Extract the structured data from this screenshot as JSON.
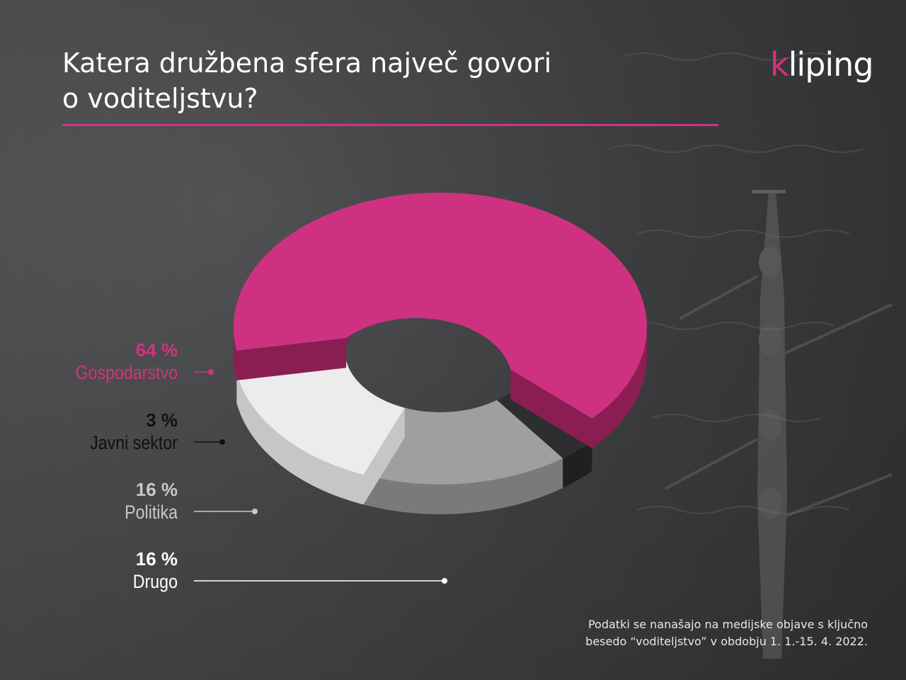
{
  "header": {
    "title_line1": "Katera družbena sfera največ govori",
    "title_line2": "o voditeljstvu?",
    "logo_initial": "k",
    "logo_rest": "liping",
    "accent_color": "#d2337f"
  },
  "chart_data": {
    "type": "pie",
    "variant": "3d-donut",
    "title": "Katera družbena sfera največ govori o voditeljstvu?",
    "unit": "%",
    "slices": [
      {
        "label": "Gospodarstvo",
        "value": 64,
        "value_label": "64 %",
        "color": "#cf3181",
        "side": "#8a1e52",
        "label_color": "#d2337f",
        "value_color": "#d2337f"
      },
      {
        "label": "Javni sektor",
        "value": 3,
        "value_label": "3 %",
        "color": "#2d2e30",
        "side": "#1f2022",
        "label_color": "#111111",
        "value_color": "#111111"
      },
      {
        "label": "Politika",
        "value": 16,
        "value_label": "16 %",
        "color": "#a09fa0",
        "side": "#7a797b",
        "label_color": "#c9c8c9",
        "value_color": "#c9c8c9"
      },
      {
        "label": "Drugo",
        "value": 16,
        "value_label": "16 %",
        "color": "#ececec",
        "side": "#c6c6c6",
        "label_color": "#ffffff",
        "value_color": "#ffffff"
      }
    ]
  },
  "footnote": {
    "line1": "Podatki se nanašajo na medijske objave s ključno",
    "line2": "besedo “voditeljstvo” v obdobju 1. 1.-15. 4. 2022."
  }
}
